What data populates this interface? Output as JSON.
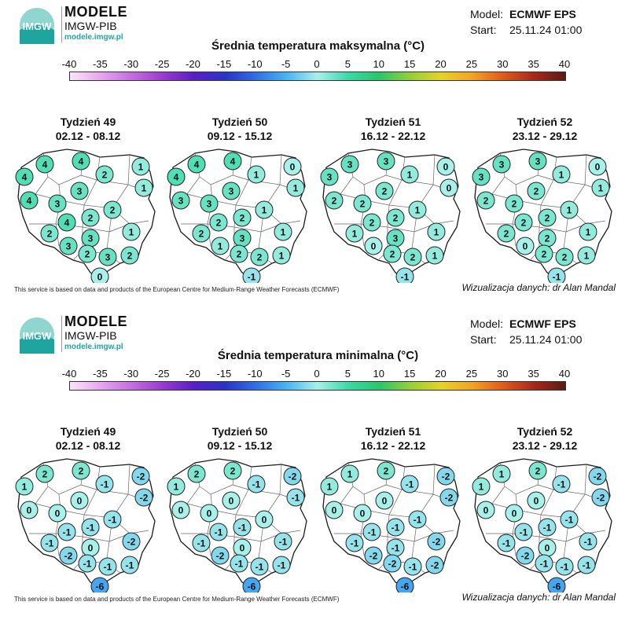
{
  "colors": {
    "outline": "#1a1a1a",
    "region_fill": "#ffffff"
  },
  "colorbar_stops": [
    {
      "v": -40,
      "c": "#fbe4fb"
    },
    {
      "v": -35,
      "c": "#e6a6ee"
    },
    {
      "v": -30,
      "c": "#c46de0"
    },
    {
      "v": -25,
      "c": "#9a3ad0"
    },
    {
      "v": -20,
      "c": "#5a1fc4"
    },
    {
      "v": -15,
      "c": "#2a32c8"
    },
    {
      "v": -10,
      "c": "#2f6fe6"
    },
    {
      "v": -5,
      "c": "#49b4f2"
    },
    {
      "v": 0,
      "c": "#a8f0ea"
    },
    {
      "v": 5,
      "c": "#3ad9a8"
    },
    {
      "v": 10,
      "c": "#2bc66a"
    },
    {
      "v": 15,
      "c": "#96cf37"
    },
    {
      "v": 20,
      "c": "#e6d22a"
    },
    {
      "v": 25,
      "c": "#f2a324"
    },
    {
      "v": 30,
      "c": "#e05a1a"
    },
    {
      "v": 35,
      "c": "#a8281a"
    },
    {
      "v": 40,
      "c": "#5a1c14"
    }
  ],
  "panels": [
    {
      "brand": {
        "name": "MODELE",
        "sub": "IMGW-PIB",
        "url": "modele.imgw.pl",
        "logo_text": "IMGW"
      },
      "model_label": "Model:",
      "model_value": "ECMWF EPS",
      "start_label": "Start:",
      "start_value": "25.11.24 01:00",
      "title": "Średnia temperatura maksymalna (°C)",
      "ticks": [
        "-40",
        "-35",
        "-30",
        "-25",
        "-20",
        "-15",
        "-10",
        "-5",
        "0",
        "5",
        "10",
        "15",
        "20",
        "25",
        "30",
        "35",
        "40"
      ],
      "weeks": [
        {
          "label": "Tydzień 49",
          "dates": "02.12 - 08.12",
          "values": [
            4,
            4,
            4,
            2,
            1,
            3,
            1,
            4,
            3,
            2,
            2,
            2,
            4,
            3,
            1,
            3,
            2,
            3,
            2,
            0
          ]
        },
        {
          "label": "Tydzień 50",
          "dates": "09.12 - 15.12",
          "values": [
            4,
            4,
            4,
            1,
            0,
            3,
            1,
            3,
            3,
            2,
            1,
            2,
            2,
            3,
            1,
            1,
            2,
            2,
            1,
            -1
          ]
        },
        {
          "label": "Tydzień 51",
          "dates": "16.12 - 22.12",
          "values": [
            3,
            3,
            3,
            1,
            0,
            2,
            0,
            2,
            2,
            2,
            1,
            1,
            2,
            3,
            1,
            0,
            2,
            2,
            1,
            -1
          ]
        },
        {
          "label": "Tydzień 52",
          "dates": "23.12 - 29.12",
          "values": [
            3,
            3,
            3,
            1,
            0,
            2,
            1,
            2,
            2,
            2,
            1,
            2,
            2,
            2,
            1,
            0,
            2,
            2,
            1,
            -1
          ]
        }
      ],
      "credit": "This service is based on data and products of the European Centre for Medium-Range Weather Forecasts (ECMWF)",
      "viz": "Wizualizacja danych: dr Alan Mandal"
    },
    {
      "brand": {
        "name": "MODELE",
        "sub": "IMGW-PIB",
        "url": "modele.imgw.pl",
        "logo_text": "IMGW"
      },
      "model_label": "Model:",
      "model_value": "ECMWF EPS",
      "start_label": "Start:",
      "start_value": "25.11.24 01:00",
      "title": "Średnia temperatura minimalna (°C)",
      "ticks": [
        "-40",
        "-35",
        "-30",
        "-25",
        "-20",
        "-15",
        "-10",
        "-5",
        "0",
        "5",
        "10",
        "15",
        "20",
        "25",
        "30",
        "35",
        "40"
      ],
      "weeks": [
        {
          "label": "Tydzień 49",
          "dates": "02.12 - 08.12",
          "values": [
            1,
            2,
            2,
            -1,
            -2,
            0,
            -2,
            0,
            0,
            -1,
            -1,
            -1,
            -1,
            0,
            -2,
            -2,
            -1,
            -1,
            -1,
            -6
          ]
        },
        {
          "label": "Tydzień 50",
          "dates": "09.12 - 15.12",
          "values": [
            1,
            2,
            2,
            -1,
            -2,
            0,
            -1,
            0,
            0,
            -1,
            0,
            -1,
            -1,
            0,
            -1,
            -2,
            -1,
            -1,
            -1,
            -6
          ]
        },
        {
          "label": "Tydzień 51",
          "dates": "16.12 - 22.12",
          "values": [
            1,
            1,
            2,
            -1,
            -2,
            0,
            -2,
            0,
            0,
            -1,
            -1,
            -1,
            -1,
            -1,
            -2,
            -2,
            -2,
            -1,
            -2,
            -6
          ]
        },
        {
          "label": "Tydzień 52",
          "dates": "23.12 - 29.12",
          "values": [
            1,
            1,
            2,
            -1,
            -2,
            0,
            -2,
            0,
            0,
            -1,
            -1,
            -1,
            -1,
            0,
            -1,
            -2,
            -1,
            -1,
            -1,
            -6
          ]
        }
      ],
      "credit": "This service is based on data and products of the European Centre for Medium-Range Weather Forecasts (ECMWF)",
      "viz": "Wizualizacja danych: dr Alan Mandal"
    }
  ]
}
